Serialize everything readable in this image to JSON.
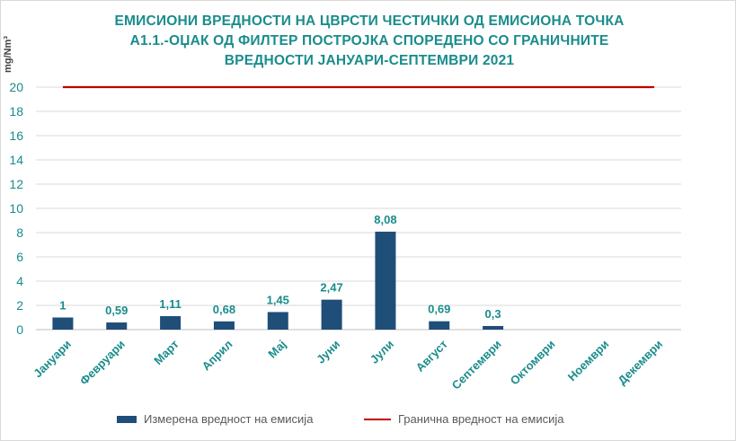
{
  "chart_data": {
    "type": "bar",
    "title_lines": [
      "ЕМИСИОНИ ВРЕДНОСТИ НА ЦВРСТИ ЧЕСТИЧКИ ОД ЕМИСИОНА ТОЧКА",
      "А1.1.-ОЏАК ОД ФИЛТЕР ПОСТРОЈКА СПОРЕДЕНО СО ГРАНИЧНИТЕ",
      "ВРЕДНОСТИ ЈАНУАРИ-СЕПТЕМВРИ 2021"
    ],
    "ylabel": "mg/Nm³",
    "ylim": [
      0,
      20
    ],
    "yticks": [
      0,
      2,
      4,
      6,
      8,
      10,
      12,
      14,
      16,
      18,
      20
    ],
    "categories": [
      "Јануари",
      "Февруари",
      "Март",
      "Април",
      "Мај",
      "Јуни",
      "Јули",
      "Август",
      "Септември",
      "Октомври",
      "Ноември",
      "Декември"
    ],
    "series": [
      {
        "name": "Измерена вредност на емисија",
        "type": "bar",
        "color": "#1f4e79",
        "values": [
          1,
          0.59,
          1.11,
          0.68,
          1.45,
          2.47,
          8.08,
          0.69,
          0.3,
          null,
          null,
          null
        ],
        "labels": [
          "1",
          "0,59",
          "1,11",
          "0,68",
          "1,45",
          "2,47",
          "8,08",
          "0,69",
          "0,3",
          "",
          "",
          ""
        ]
      },
      {
        "name": "Гранична вредност на емисија",
        "type": "line",
        "color": "#c00000",
        "values": [
          20,
          20,
          20,
          20,
          20,
          20,
          20,
          20,
          20,
          20,
          20,
          20
        ]
      }
    ],
    "grid": true,
    "legend": "bottom",
    "colors": {
      "title": "#1a8c8c",
      "axis_text": "#1a8c8c",
      "data_label": "#1a8c8c",
      "grid": "#d9d9d9"
    }
  }
}
